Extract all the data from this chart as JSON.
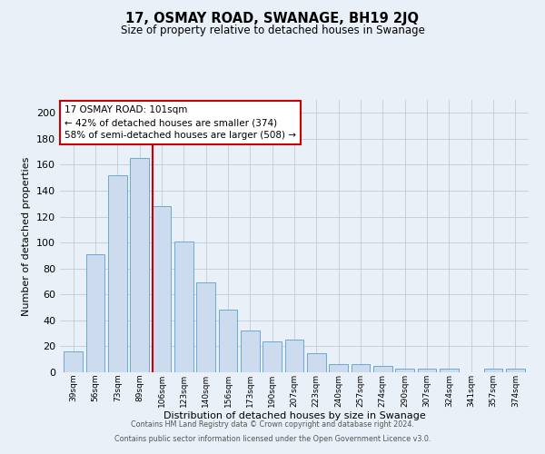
{
  "title": "17, OSMAY ROAD, SWANAGE, BH19 2JQ",
  "subtitle": "Size of property relative to detached houses in Swanage",
  "xlabel": "Distribution of detached houses by size in Swanage",
  "ylabel": "Number of detached properties",
  "categories": [
    "39sqm",
    "56sqm",
    "73sqm",
    "89sqm",
    "106sqm",
    "123sqm",
    "140sqm",
    "156sqm",
    "173sqm",
    "190sqm",
    "207sqm",
    "223sqm",
    "240sqm",
    "257sqm",
    "274sqm",
    "290sqm",
    "307sqm",
    "324sqm",
    "341sqm",
    "357sqm",
    "374sqm"
  ],
  "values": [
    16,
    91,
    152,
    165,
    128,
    101,
    69,
    48,
    32,
    24,
    25,
    15,
    6,
    6,
    5,
    3,
    3,
    3,
    0,
    3,
    3
  ],
  "bar_color": "#ccdcee",
  "bar_edge_color": "#6aaad4",
  "background_color": "#eaf0f8",
  "grid_color": "#c0ccd8",
  "ylim": [
    0,
    210
  ],
  "yticks": [
    0,
    20,
    40,
    60,
    80,
    100,
    120,
    140,
    160,
    180,
    200
  ],
  "property_label": "17 OSMAY ROAD: 101sqm",
  "annotation_line1": "← 42% of detached houses are smaller (374)",
  "annotation_line2": "58% of semi-detached houses are larger (508) →",
  "annotation_box_color": "#ffffff",
  "annotation_box_edge": "#cc0000",
  "vertical_line_color": "#cc0000",
  "vertical_line_bin_index": 4,
  "footer_line1": "Contains HM Land Registry data © Crown copyright and database right 2024.",
  "footer_line2": "Contains public sector information licensed under the Open Government Licence v3.0."
}
